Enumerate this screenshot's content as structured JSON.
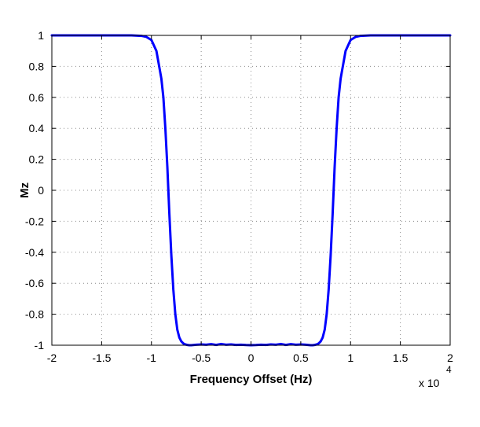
{
  "chart_data": {
    "type": "line",
    "title": "",
    "xlabel": "Frequency Offset (Hz)",
    "ylabel": "Mz",
    "x_scale_note": "x 10",
    "x_scale_exponent": "4",
    "xlim": [
      -20000,
      20000
    ],
    "ylim": [
      -1,
      1
    ],
    "grid": true,
    "grid_style": "dotted",
    "x_ticks": [
      -20000,
      -15000,
      -10000,
      -5000,
      0,
      5000,
      10000,
      15000,
      20000
    ],
    "x_tick_labels": [
      "-2",
      "-1.5",
      "-1",
      "-0.5",
      "0",
      "0.5",
      "1",
      "1.5",
      "2"
    ],
    "y_ticks": [
      1,
      0.8,
      0.6,
      0.4,
      0.2,
      0,
      -0.2,
      -0.4,
      -0.6,
      -0.8,
      -1
    ],
    "y_tick_labels": [
      "1",
      "0.8",
      "0.6",
      "0.4",
      "0.2",
      "0",
      "-0.2",
      "-0.4",
      "-0.6",
      "-0.8",
      "-1"
    ],
    "line_color": "#0000ff",
    "series": [
      {
        "x": [
          -20000,
          -15000,
          -12000,
          -11000,
          -10500,
          -10000,
          -9500,
          -9000,
          -8800,
          -8600,
          -8400,
          -8200,
          -8000,
          -7800,
          -7600,
          -7400,
          -7200,
          -7000,
          -6800,
          -6600,
          -6400,
          -6200,
          -6000,
          -5500,
          -5000,
          -4500,
          -4000,
          -3500,
          -3000,
          -2500,
          -2000,
          -1500,
          -1000,
          -500,
          0,
          500,
          1000,
          1500,
          2000,
          2500,
          3000,
          3500,
          4000,
          4500,
          5000,
          5500,
          6000,
          6200,
          6400,
          6600,
          6800,
          7000,
          7200,
          7400,
          7600,
          7800,
          8000,
          8200,
          8400,
          8600,
          8800,
          9000,
          9500,
          10000,
          10500,
          11000,
          12000,
          15000,
          20000
        ],
        "y": [
          1,
          1,
          1,
          0.997,
          0.99,
          0.97,
          0.9,
          0.72,
          0.6,
          0.4,
          0.15,
          -0.15,
          -0.42,
          -0.64,
          -0.8,
          -0.9,
          -0.95,
          -0.975,
          -0.988,
          -0.995,
          -0.998,
          -1,
          -1,
          -0.997,
          -0.995,
          -0.997,
          -0.993,
          -0.998,
          -0.992,
          -0.997,
          -0.995,
          -0.998,
          -0.997,
          -0.999,
          -1,
          -0.999,
          -0.997,
          -0.998,
          -0.995,
          -0.997,
          -0.992,
          -0.998,
          -0.993,
          -0.997,
          -0.995,
          -0.997,
          -1,
          -1,
          -0.998,
          -0.995,
          -0.988,
          -0.975,
          -0.95,
          -0.9,
          -0.8,
          -0.64,
          -0.42,
          -0.15,
          0.15,
          0.4,
          0.6,
          0.72,
          0.9,
          0.97,
          0.99,
          0.997,
          1,
          1,
          1
        ]
      }
    ]
  }
}
